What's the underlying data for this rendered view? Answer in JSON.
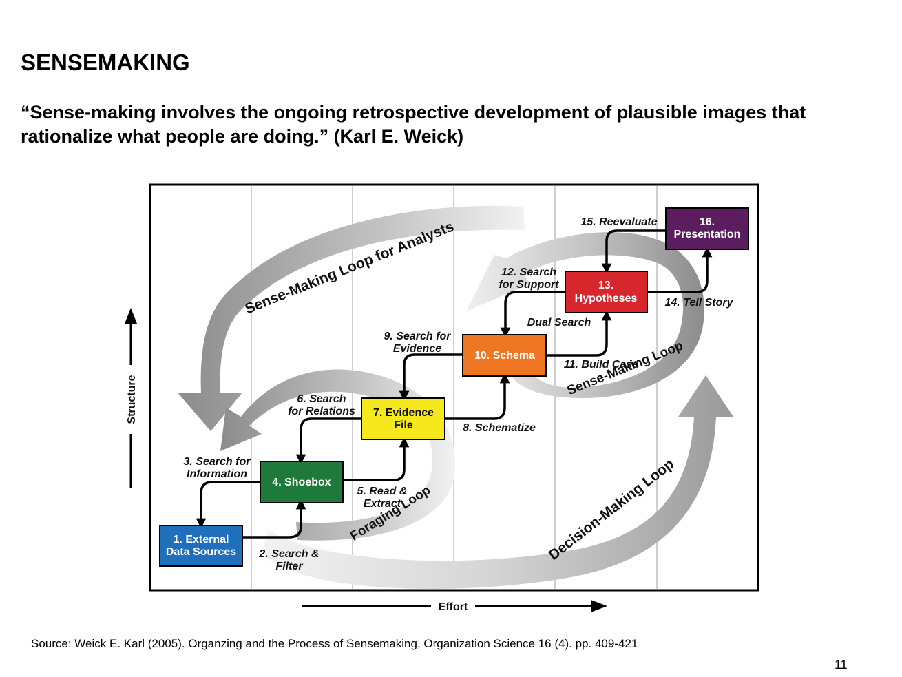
{
  "slide": {
    "title": "SENSEMAKING",
    "quote": "“Sense-making involves the ongoing retrospective development of plausible images that rationalize what people are doing.” (Karl E. Weick)",
    "source": "Source: Weick E. Karl (2005). Organzing and the Process of Sensemaking, Organization Science 16 (4). pp. 409-421",
    "page_number": "11"
  },
  "diagram": {
    "axes": {
      "y": "Structure",
      "x": "Effort"
    },
    "loops": {
      "analysts": "Sense-Making Loop for Analysts",
      "foraging": "Foraging Loop",
      "sensemaking": "Sense-Making Loop",
      "decision": "Decision-Making Loop"
    },
    "boxes": {
      "b1": {
        "line1": "1. External",
        "line2": "Data Sources",
        "color": "#1f6fbd"
      },
      "b4": {
        "line1": "4. Shoebox",
        "color": "#1d7a3a"
      },
      "b7": {
        "line1": "7. Evidence",
        "line2": "File",
        "color": "#f5e81c"
      },
      "b10": {
        "line1": "10. Schema",
        "color": "#ef7623"
      },
      "b13": {
        "line1": "13.",
        "line2": "Hypotheses",
        "color": "#d7262c"
      },
      "b16": {
        "line1": "16.",
        "line2": "Presentation",
        "color": "#5b1d5e"
      }
    },
    "steps": {
      "s2": {
        "line1": "2. Search &",
        "line2": "Filter"
      },
      "s3": {
        "line1": "3. Search for",
        "line2": "Information"
      },
      "s5": {
        "line1": "5. Read &",
        "line2": "Extract"
      },
      "s6": {
        "line1": "6. Search",
        "line2": "for Relations"
      },
      "s8": {
        "line1": "8. Schematize"
      },
      "s9": {
        "line1": "9. Search for",
        "line2": "Evidence"
      },
      "s11": {
        "line1": "11. Build Case"
      },
      "s12": {
        "line1": "12. Search",
        "line2": "for Support"
      },
      "s14": {
        "line1": "14. Tell Story"
      },
      "s15": {
        "line1": "15. Reevaluate"
      },
      "dual": {
        "line1": "Dual Search",
        "color": "#d7262c"
      }
    }
  }
}
